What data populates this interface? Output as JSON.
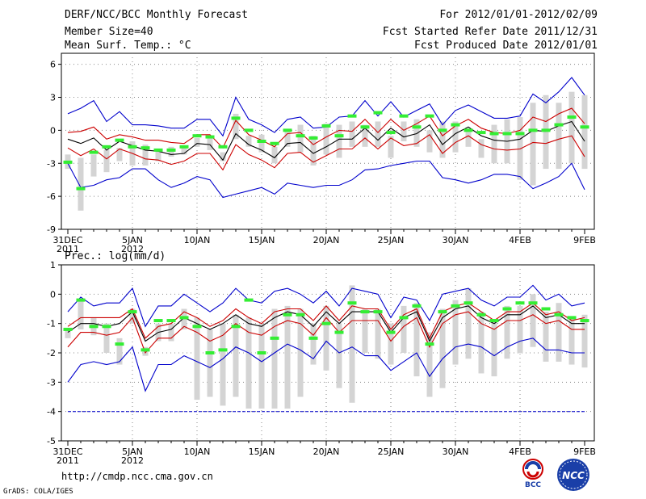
{
  "header": {
    "title": "DERF/NCC/BCC Monthly Forecast",
    "member_size": "Member Size=40",
    "variable1": "Mean Surf. Temp.: °C",
    "period": "For 2012/01/01-2012/02/09",
    "started": "Fcst Started Refer Date 2011/12/31",
    "produced": "Fcst Produced Date 2012/01/01"
  },
  "footer": {
    "url": "http://cmdp.ncc.cma.gov.cn",
    "credit": "GrADS: COLA/IGES",
    "logo_left": "BCC",
    "logo_right": "NCC"
  },
  "colors": {
    "extreme": "#0000cc",
    "spread": "#cc0000",
    "mean": "#000000",
    "obs": "#33ee33",
    "box": "#d4d4d4",
    "grid": "#888888"
  },
  "chart_data": [
    {
      "type": "line",
      "title": "Mean Surf. Temp.: °C",
      "xlabel": "",
      "ylabel": "",
      "ylim": [
        -9,
        7
      ],
      "yticks": [
        -9,
        -6,
        -3,
        0,
        3,
        6
      ],
      "x": [
        0,
        1,
        2,
        3,
        4,
        5,
        6,
        7,
        8,
        9,
        10,
        11,
        12,
        13,
        14,
        15,
        16,
        17,
        18,
        19,
        20,
        21,
        22,
        23,
        24,
        25,
        26,
        27,
        28,
        29,
        30,
        31,
        32,
        33,
        34,
        35,
        36,
        37,
        38,
        39,
        40
      ],
      "xticks": [
        {
          "x": 0,
          "label": "31DEC",
          "sub": "2011"
        },
        {
          "x": 5,
          "label": "5JAN",
          "sub": "2012"
        },
        {
          "x": 10,
          "label": "10JAN",
          "sub": ""
        },
        {
          "x": 15,
          "label": "15JAN",
          "sub": ""
        },
        {
          "x": 20,
          "label": "20JAN",
          "sub": ""
        },
        {
          "x": 25,
          "label": "25JAN",
          "sub": ""
        },
        {
          "x": 30,
          "label": "30JAN",
          "sub": ""
        },
        {
          "x": 35,
          "label": "4FEB",
          "sub": ""
        },
        {
          "x": 40,
          "label": "9FEB",
          "sub": ""
        }
      ],
      "series": [
        {
          "name": "max",
          "values": [
            1.5,
            2.0,
            2.7,
            0.8,
            1.7,
            0.5,
            0.5,
            0.4,
            0.2,
            0.2,
            1.0,
            1.0,
            -0.5,
            3.0,
            1.0,
            0.5,
            -0.2,
            1.0,
            1.2,
            0.2,
            0.3,
            1.2,
            1.3,
            2.7,
            1.3,
            2.6,
            1.2,
            1.8,
            2.4,
            0.5,
            1.8,
            2.3,
            1.7,
            1.1,
            1.1,
            1.3,
            3.3,
            2.5,
            3.5,
            4.8,
            3.2
          ]
        },
        {
          "name": "spread_upper",
          "values": [
            -0.2,
            -0.1,
            0.3,
            -0.8,
            -0.4,
            -0.6,
            -0.9,
            -0.9,
            -1.1,
            -1.2,
            -0.4,
            -0.4,
            -1.6,
            0.9,
            -0.4,
            -0.9,
            -1.5,
            -0.3,
            -0.2,
            -1.3,
            -0.6,
            0.0,
            -0.1,
            1.0,
            -0.2,
            1.0,
            0.0,
            0.6,
            1.3,
            -0.5,
            0.4,
            1.0,
            0.2,
            -0.2,
            -0.3,
            0.0,
            1.2,
            0.8,
            1.5,
            2.0,
            0.6
          ]
        },
        {
          "name": "mean",
          "values": [
            -0.8,
            -1.2,
            -0.7,
            -1.8,
            -1.0,
            -1.4,
            -1.8,
            -1.9,
            -2.2,
            -2.1,
            -1.2,
            -1.3,
            -2.7,
            -0.3,
            -1.3,
            -1.8,
            -2.5,
            -1.2,
            -1.1,
            -2.1,
            -1.5,
            -0.8,
            -0.8,
            0.2,
            -0.9,
            0.2,
            -0.6,
            -0.3,
            0.5,
            -1.3,
            -0.3,
            0.3,
            -0.5,
            -0.9,
            -1.0,
            -0.8,
            0.0,
            -0.1,
            0.4,
            0.8,
            -1.0
          ]
        },
        {
          "name": "spread_lower",
          "values": [
            -1.6,
            -2.3,
            -1.7,
            -2.6,
            -1.7,
            -2.1,
            -2.6,
            -2.7,
            -3.1,
            -2.8,
            -2.1,
            -2.1,
            -3.6,
            -1.3,
            -2.2,
            -2.7,
            -3.4,
            -2.1,
            -2.0,
            -2.9,
            -2.3,
            -1.7,
            -1.7,
            -0.7,
            -1.7,
            -0.7,
            -1.4,
            -1.2,
            -0.4,
            -2.1,
            -1.1,
            -0.5,
            -1.3,
            -1.7,
            -1.8,
            -1.7,
            -1.1,
            -1.2,
            -0.8,
            -0.5,
            -2.4
          ]
        },
        {
          "name": "min",
          "values": [
            -3.0,
            -5.2,
            -5.0,
            -4.5,
            -4.3,
            -3.5,
            -3.5,
            -4.5,
            -5.2,
            -4.8,
            -4.2,
            -4.5,
            -6.1,
            -5.8,
            -5.5,
            -5.2,
            -5.8,
            -4.8,
            -5.0,
            -5.2,
            -5.0,
            -5.0,
            -4.5,
            -3.6,
            -3.5,
            -3.2,
            -3.0,
            -2.8,
            -2.8,
            -4.3,
            -4.5,
            -4.8,
            -4.5,
            -4.0,
            -4.0,
            -4.2,
            -5.3,
            -4.8,
            -4.2,
            -3.0,
            -5.4
          ]
        }
      ],
      "boxes": {
        "hi": [
          -2.2,
          -2.5,
          -2.2,
          -1.8,
          -1.6,
          -1.0,
          -1.3,
          -1.7,
          -1.5,
          -1.4,
          -0.7,
          -0.5,
          -2.0,
          1.5,
          -0.5,
          -0.4,
          -1.5,
          0.0,
          0.5,
          -0.5,
          0.6,
          0.5,
          0.8,
          0.5,
          0.8,
          -0.5,
          0.8,
          1.0,
          0.0,
          0.8,
          0.8,
          0.0,
          -0.8,
          0.5,
          1.0,
          1.2,
          2.5,
          3.2,
          2.5,
          3.5,
          3.2
        ],
        "lo": [
          -3.5,
          -7.3,
          -4.2,
          -3.8,
          -2.8,
          -3.2,
          -3.2,
          -2.8,
          -2.4,
          -2.2,
          -1.5,
          -1.8,
          -2.8,
          -0.8,
          -1.5,
          -2.0,
          -3.0,
          -1.5,
          -2.0,
          -3.2,
          -2.2,
          -2.5,
          -1.5,
          -1.5,
          -1.5,
          -2.5,
          -1.0,
          -1.5,
          -2.0,
          -2.5,
          -2.0,
          -1.5,
          -2.5,
          -3.0,
          -3.0,
          -4.5,
          -5.0,
          -3.5,
          -3.5,
          -3.0,
          -3.5
        ]
      },
      "obs": [
        -2.9,
        -5.3,
        -2.0,
        -1.5,
        -0.9,
        -1.5,
        -1.6,
        -1.8,
        -1.8,
        -1.5,
        -0.5,
        -0.6,
        -1.5,
        1.1,
        0.0,
        -1.0,
        -1.2,
        0.0,
        -0.5,
        -0.7,
        0.4,
        -0.5,
        1.3,
        0.3,
        1.6,
        -0.2,
        1.3,
        0.3,
        1.3,
        0.0,
        0.5,
        0.0,
        -0.2,
        -0.3,
        -0.3,
        -0.3,
        0.0,
        0.0,
        0.5,
        1.2,
        0.3
      ]
    },
    {
      "type": "line",
      "title": "Prec.: log(mm/d)",
      "xlabel": "",
      "ylabel": "",
      "ylim": [
        -5,
        1
      ],
      "yticks": [
        -5,
        -4,
        -3,
        -2,
        -1,
        0,
        1
      ],
      "x": [
        0,
        1,
        2,
        3,
        4,
        5,
        6,
        7,
        8,
        9,
        10,
        11,
        12,
        13,
        14,
        15,
        16,
        17,
        18,
        19,
        20,
        21,
        22,
        23,
        24,
        25,
        26,
        27,
        28,
        29,
        30,
        31,
        32,
        33,
        34,
        35,
        36,
        37,
        38,
        39,
        40
      ],
      "xticks": [
        {
          "x": 0,
          "label": "31DEC",
          "sub": "2011"
        },
        {
          "x": 5,
          "label": "5JAN",
          "sub": "2012"
        },
        {
          "x": 10,
          "label": "10JAN",
          "sub": ""
        },
        {
          "x": 15,
          "label": "15JAN",
          "sub": ""
        },
        {
          "x": 20,
          "label": "20JAN",
          "sub": ""
        },
        {
          "x": 25,
          "label": "25JAN",
          "sub": ""
        },
        {
          "x": 30,
          "label": "30JAN",
          "sub": ""
        },
        {
          "x": 35,
          "label": "4FEB",
          "sub": ""
        },
        {
          "x": 40,
          "label": "9FEB",
          "sub": ""
        }
      ],
      "series": [
        {
          "name": "max",
          "values": [
            -0.6,
            -0.1,
            -0.4,
            -0.3,
            -0.3,
            0.2,
            -1.1,
            -0.4,
            -0.4,
            0.0,
            -0.3,
            -0.6,
            -0.3,
            0.2,
            -0.2,
            -0.3,
            0.1,
            0.2,
            0.0,
            -0.3,
            0.1,
            -0.4,
            0.2,
            0.1,
            0.0,
            -0.8,
            -0.1,
            -0.2,
            -0.9,
            0.0,
            0.1,
            0.2,
            -0.2,
            -0.4,
            -0.1,
            -0.1,
            0.3,
            -0.2,
            0.0,
            -0.4,
            -0.3
          ]
        },
        {
          "name": "spread_upper",
          "values": [
            -1.1,
            -0.8,
            -0.8,
            -0.8,
            -0.8,
            -0.5,
            -1.5,
            -1.1,
            -1.0,
            -0.6,
            -0.8,
            -1.1,
            -0.9,
            -0.5,
            -0.8,
            -1.0,
            -0.6,
            -0.5,
            -0.5,
            -0.9,
            -0.4,
            -0.9,
            -0.4,
            -0.5,
            -0.5,
            -1.2,
            -0.7,
            -0.5,
            -1.5,
            -0.6,
            -0.4,
            -0.3,
            -0.6,
            -0.9,
            -0.6,
            -0.6,
            -0.3,
            -0.7,
            -0.6,
            -0.9,
            -0.8
          ]
        },
        {
          "name": "mean",
          "values": [
            -1.3,
            -1.0,
            -1.0,
            -1.1,
            -1.0,
            -0.6,
            -1.6,
            -1.3,
            -1.2,
            -0.8,
            -1.0,
            -1.2,
            -1.0,
            -0.7,
            -1.0,
            -1.1,
            -0.8,
            -0.6,
            -0.7,
            -1.1,
            -0.6,
            -1.0,
            -0.6,
            -0.6,
            -0.6,
            -1.3,
            -0.8,
            -0.6,
            -1.6,
            -0.8,
            -0.5,
            -0.4,
            -0.8,
            -1.0,
            -0.7,
            -0.7,
            -0.4,
            -0.8,
            -0.7,
            -1.0,
            -1.0
          ]
        },
        {
          "name": "spread_lower",
          "values": [
            -1.8,
            -1.3,
            -1.3,
            -1.4,
            -1.3,
            -0.8,
            -2.0,
            -1.5,
            -1.5,
            -1.1,
            -1.3,
            -1.6,
            -1.4,
            -1.0,
            -1.3,
            -1.4,
            -1.1,
            -0.9,
            -1.0,
            -1.4,
            -0.8,
            -1.3,
            -0.9,
            -0.9,
            -0.9,
            -1.6,
            -1.1,
            -0.8,
            -1.8,
            -1.0,
            -0.7,
            -0.6,
            -1.0,
            -1.2,
            -0.9,
            -0.9,
            -0.7,
            -1.0,
            -0.9,
            -1.2,
            -1.2
          ]
        },
        {
          "name": "min",
          "values": [
            -3.0,
            -2.4,
            -2.3,
            -2.4,
            -2.3,
            -1.8,
            -3.3,
            -2.4,
            -2.4,
            -2.1,
            -2.3,
            -2.5,
            -2.2,
            -1.8,
            -2.0,
            -2.3,
            -2.0,
            -1.7,
            -1.9,
            -2.2,
            -1.6,
            -2.0,
            -1.8,
            -2.1,
            -2.1,
            -2.6,
            -2.3,
            -2.0,
            -2.8,
            -2.2,
            -1.8,
            -1.7,
            -1.8,
            -2.1,
            -1.8,
            -1.6,
            -1.5,
            -1.9,
            -1.9,
            -2.0,
            -2.0
          ]
        },
        {
          "name": "floor",
          "values": [
            -4,
            -4,
            -4,
            -4,
            -4,
            -4,
            -4,
            -4,
            -4,
            -4,
            -4,
            -4,
            -4,
            -4,
            -4,
            -4,
            -4,
            -4,
            -4,
            -4,
            -4,
            -4,
            -4,
            -4,
            -4,
            -4,
            -4,
            -4,
            -4,
            -4,
            -4,
            -4,
            -4,
            -4,
            -4,
            -4,
            -4,
            -4,
            -4,
            -4,
            -4
          ]
        }
      ],
      "boxes": {
        "hi": [
          -1.2,
          -0.2,
          -0.8,
          -1.0,
          -1.5,
          -0.5,
          -1.8,
          -1.0,
          -1.0,
          -0.5,
          -0.8,
          -1.2,
          -1.0,
          -0.7,
          -0.8,
          -1.0,
          -0.5,
          -0.4,
          -0.5,
          -1.0,
          -0.4,
          -1.0,
          0.3,
          -0.5,
          -0.5,
          -1.0,
          -0.4,
          -0.3,
          -1.3,
          -0.5,
          -0.2,
          0.2,
          -0.6,
          -0.9,
          -0.4,
          -0.4,
          0.0,
          -0.6,
          -0.3,
          -0.8,
          -0.7
        ],
        "lo": [
          -1.5,
          -1.2,
          -1.4,
          -2.0,
          -2.4,
          -1.0,
          -2.1,
          -1.6,
          -1.6,
          -1.2,
          -3.6,
          -3.5,
          -3.8,
          -3.5,
          -3.9,
          -3.9,
          -3.9,
          -3.9,
          -3.5,
          -2.4,
          -2.6,
          -3.2,
          -3.7,
          -2.0,
          -2.2,
          -2.4,
          -2.0,
          -2.8,
          -3.5,
          -3.2,
          -2.4,
          -2.2,
          -2.7,
          -2.8,
          -2.2,
          -2.0,
          -1.8,
          -2.3,
          -2.3,
          -2.4,
          -2.5
        ]
      },
      "obs": [
        -1.2,
        -0.2,
        -1.1,
        -1.1,
        -1.7,
        -0.6,
        -1.9,
        -0.9,
        -0.9,
        -0.8,
        -1.1,
        -2.0,
        -1.9,
        -1.1,
        -0.2,
        -2.0,
        -1.5,
        -0.7,
        -0.7,
        -1.5,
        -1.0,
        -1.3,
        -0.3,
        -0.6,
        -0.6,
        -1.3,
        -0.8,
        -0.4,
        -1.7,
        -0.6,
        -0.4,
        -0.3,
        -0.7,
        -0.9,
        -0.5,
        -0.3,
        -0.3,
        -0.5,
        -0.7,
        -0.8,
        -0.9
      ]
    }
  ]
}
